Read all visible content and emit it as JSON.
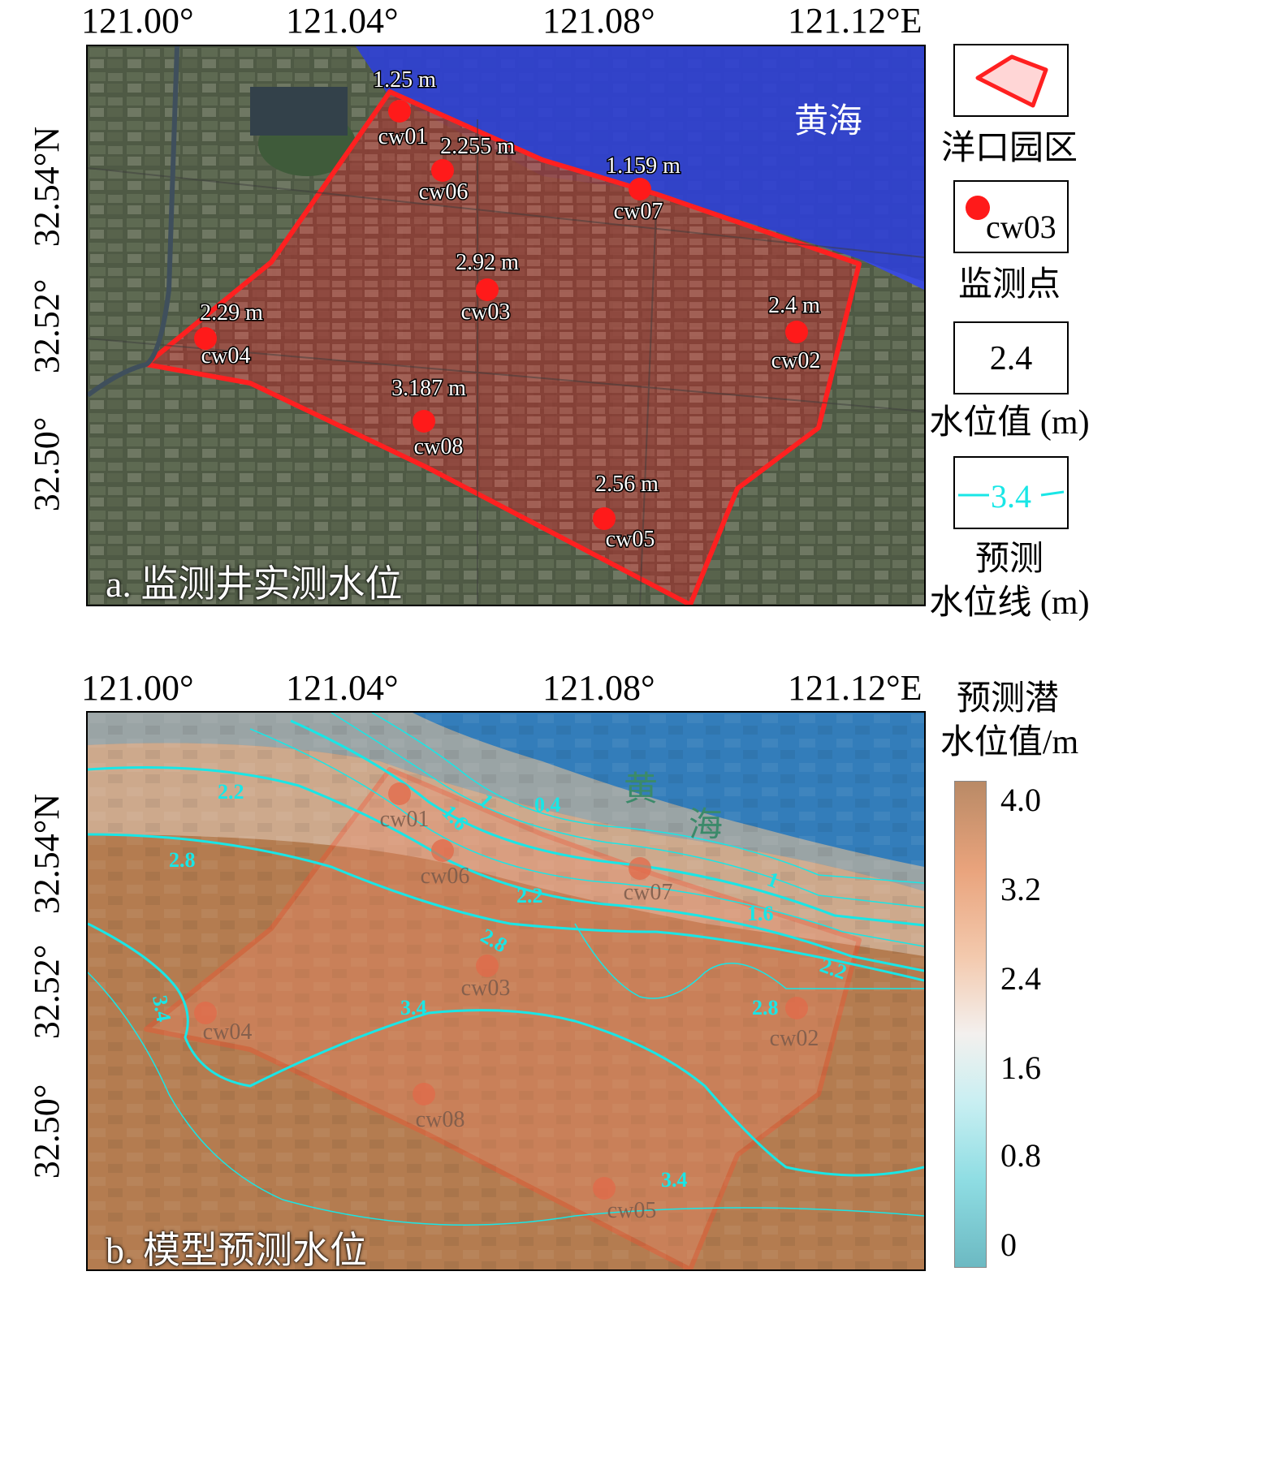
{
  "panel_a": {
    "title": "a. 监测井实测水位",
    "lon_ticks": [
      "121.00°",
      "121.04°",
      "121.08°",
      "121.12°E"
    ],
    "lat_ticks": [
      "32.54°N",
      "32.52°",
      "32.50°"
    ],
    "sea_label": "黄海",
    "wells": [
      {
        "id": "cw01",
        "level": "1.25 m"
      },
      {
        "id": "cw06",
        "level": "2.255 m"
      },
      {
        "id": "cw07",
        "level": "1.159 m"
      },
      {
        "id": "cw03",
        "level": "2.92 m"
      },
      {
        "id": "cw04",
        "level": "2.29 m"
      },
      {
        "id": "cw02",
        "level": "2.4 m"
      },
      {
        "id": "cw08",
        "level": "3.187 m"
      },
      {
        "id": "cw05",
        "level": "2.56 m"
      }
    ]
  },
  "panel_b": {
    "title": "b. 模型预测水位",
    "lon_ticks": [
      "121.00°",
      "121.04°",
      "121.08°",
      "121.12°E"
    ],
    "lat_ticks": [
      "32.54°N",
      "32.52°",
      "32.50°"
    ],
    "sea_label_1": "黄",
    "sea_label_2": "海",
    "wells": [
      "cw01",
      "cw06",
      "cw07",
      "cw03",
      "cw04",
      "cw02",
      "cw08",
      "cw05"
    ],
    "contour_labels": [
      "2.2",
      "2.8",
      "3.4",
      "0.4",
      "1",
      "1.6",
      "2.2",
      "2.8",
      "3.4",
      "1",
      "1.6",
      "2.2",
      "2.8",
      "3.4"
    ]
  },
  "legend": {
    "park_label": "洋口园区",
    "point_sample": "cw03",
    "point_label": "监测点",
    "value_sample": "2.4",
    "value_label": "水位值 (m)",
    "line_sample": "3.4",
    "line_label_1": "预测",
    "line_label_2": "水位线 (m)",
    "colorbar_title_1": "预测潜",
    "colorbar_title_2": "水位值/m",
    "colorbar_ticks": [
      "4.0",
      "3.2",
      "2.4",
      "1.6",
      "0.8",
      "0"
    ]
  },
  "colors": {
    "park_boundary": "#ff2020",
    "well_point": "#ff1a1a",
    "sea": "#2e3fd6",
    "contour": "#19e6e6"
  }
}
